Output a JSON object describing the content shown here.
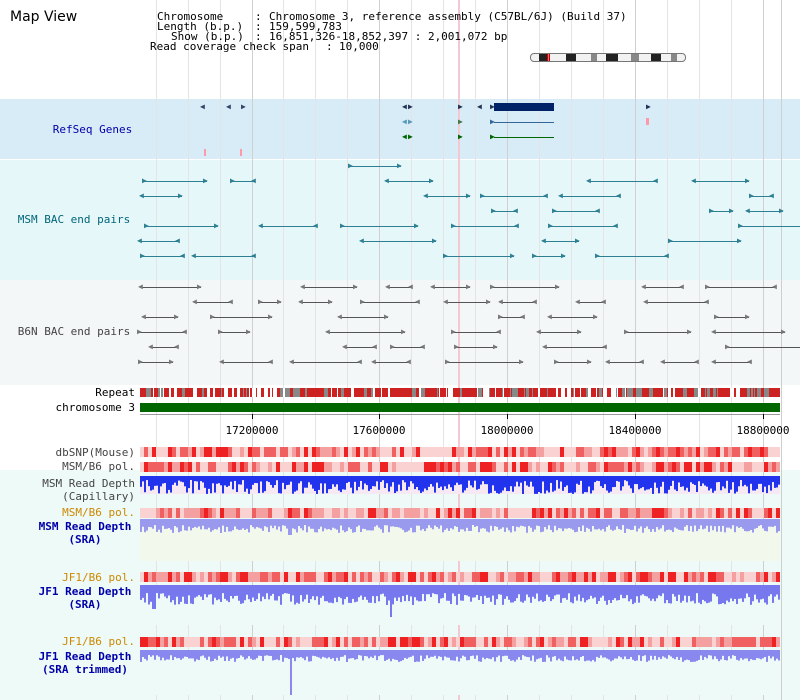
{
  "page": {
    "title": "Map View"
  },
  "header": {
    "chromosome_label": "Chromosome",
    "chromosome_value": "Chromosome 3, reference assembly (C57BL/6J) (Build 37)",
    "length_label": "Length (b.p.)",
    "length_value": "159,599,783",
    "show_label": "Show (b.p.)",
    "show_value": "16,851,326-18,852,397 : 2,001,072 bp",
    "coverage_label": "Read coverage check span",
    "coverage_value": "10,000"
  },
  "tracks": {
    "refseq": "RefSeq Genes",
    "msm_bac": "MSM BAC end pairs",
    "b6n_bac": "B6N BAC end pairs",
    "repeat": "Repeat",
    "chromosome": "chromosome 3",
    "dbsnp": "dbSNP(Mouse)",
    "msm_b6_pol": "MSM/B6 pol.",
    "msm_depth_cap_1": "MSM Read Depth",
    "msm_depth_cap_2": "(Capillary)",
    "msm_b6_pol_2": "MSM/B6 pol.",
    "msm_depth_sra_1": "MSM Read Depth",
    "msm_depth_sra_2": "(SRA)",
    "jf1_b6_pol": "JF1/B6 pol.",
    "jf1_depth_sra_1": "JF1 Read Depth",
    "jf1_depth_sra_2": "(SRA)",
    "jf1_b6_pol_2": "JF1/B6 pol.",
    "jf1_depth_trim_1": "JF1 Read Depth",
    "jf1_depth_trim_2": "(SRA trimmed)"
  },
  "axis": {
    "ticks": [
      "17200000",
      "17600000",
      "18000000",
      "18400000",
      "18800000"
    ],
    "tick_values": [
      17200000,
      17600000,
      18000000,
      18400000,
      18800000
    ],
    "range_start": 16851326,
    "range_end": 18852397
  },
  "colors": {
    "refseq_label": "#0000aa",
    "msm_label": "#006677",
    "b6n_label": "#444444",
    "pol_label_orange": "#cc8800",
    "depth_label_blue": "#0000aa",
    "chromosome_band": "#006600",
    "refseq_bg": "#d8ecf7",
    "msm_bg": "#e6f7fa",
    "b6n_bg": "#f4f7f8"
  }
}
